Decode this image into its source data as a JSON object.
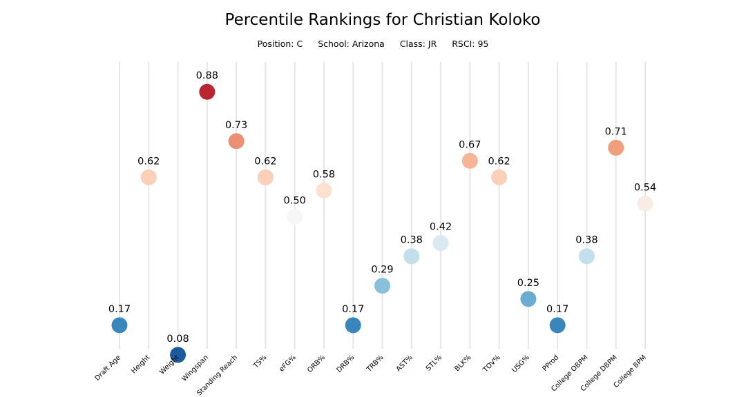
{
  "title": "Percentile Rankings for Christian Koloko",
  "subtitle": {
    "position": "Position: C",
    "school": "School: Arizona",
    "class": "Class: JR",
    "rsci": "RSCI: 95"
  },
  "chart_data": {
    "type": "scatter",
    "title": "Percentile Rankings for Christian Koloko",
    "categories": [
      "Draft Age",
      "Height",
      "Weight",
      "Wingspan",
      "Standing Reach",
      "TS%",
      "eFG%",
      "ORB%",
      "DRB%",
      "TRB%",
      "AST%",
      "STL%",
      "BLK%",
      "TOV%",
      "USG%",
      "PProd",
      "College OBPM",
      "College DBPM",
      "College BPM"
    ],
    "values": [
      0.17,
      0.62,
      0.08,
      0.88,
      0.73,
      0.62,
      0.5,
      0.58,
      0.17,
      0.29,
      0.38,
      0.42,
      0.67,
      0.62,
      0.25,
      0.17,
      0.38,
      0.71,
      0.54
    ],
    "value_labels": [
      "0.17",
      "0.62",
      "0.08",
      "0.88",
      "0.73",
      "0.62",
      "0.50",
      "0.58",
      "0.17",
      "0.29",
      "0.38",
      "0.42",
      "0.67",
      "0.62",
      "0.25",
      "0.17",
      "0.38",
      "0.71",
      "0.54"
    ],
    "ylim": [
      0,
      1
    ],
    "grid": "vertical",
    "colormap": "RdBu_r"
  }
}
